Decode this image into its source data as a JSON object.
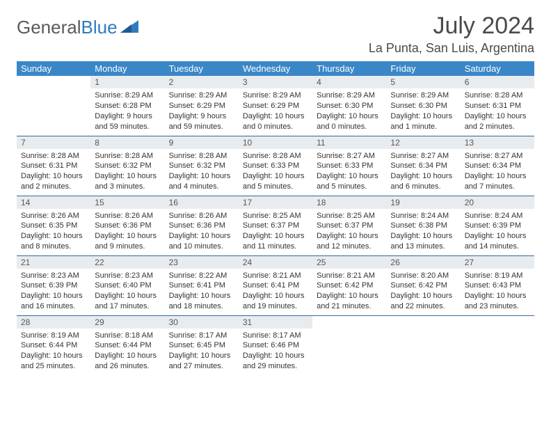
{
  "brand": {
    "part1": "General",
    "part2": "Blue"
  },
  "title": "July 2024",
  "location": "La Punta, San Luis, Argentina",
  "colors": {
    "header_bg": "#3a87c8",
    "header_text": "#ffffff",
    "daynum_bg": "#e9ecef",
    "row_divider": "#2f6aa0",
    "logo_blue": "#2f7bbf",
    "text": "#333333"
  },
  "daysOfWeek": [
    "Sunday",
    "Monday",
    "Tuesday",
    "Wednesday",
    "Thursday",
    "Friday",
    "Saturday"
  ],
  "weeks": [
    [
      null,
      {
        "n": "1",
        "sr": "Sunrise: 8:29 AM",
        "ss": "Sunset: 6:28 PM",
        "d1": "Daylight: 9 hours",
        "d2": "and 59 minutes."
      },
      {
        "n": "2",
        "sr": "Sunrise: 8:29 AM",
        "ss": "Sunset: 6:29 PM",
        "d1": "Daylight: 9 hours",
        "d2": "and 59 minutes."
      },
      {
        "n": "3",
        "sr": "Sunrise: 8:29 AM",
        "ss": "Sunset: 6:29 PM",
        "d1": "Daylight: 10 hours",
        "d2": "and 0 minutes."
      },
      {
        "n": "4",
        "sr": "Sunrise: 8:29 AM",
        "ss": "Sunset: 6:30 PM",
        "d1": "Daylight: 10 hours",
        "d2": "and 0 minutes."
      },
      {
        "n": "5",
        "sr": "Sunrise: 8:29 AM",
        "ss": "Sunset: 6:30 PM",
        "d1": "Daylight: 10 hours",
        "d2": "and 1 minute."
      },
      {
        "n": "6",
        "sr": "Sunrise: 8:28 AM",
        "ss": "Sunset: 6:31 PM",
        "d1": "Daylight: 10 hours",
        "d2": "and 2 minutes."
      }
    ],
    [
      {
        "n": "7",
        "sr": "Sunrise: 8:28 AM",
        "ss": "Sunset: 6:31 PM",
        "d1": "Daylight: 10 hours",
        "d2": "and 2 minutes."
      },
      {
        "n": "8",
        "sr": "Sunrise: 8:28 AM",
        "ss": "Sunset: 6:32 PM",
        "d1": "Daylight: 10 hours",
        "d2": "and 3 minutes."
      },
      {
        "n": "9",
        "sr": "Sunrise: 8:28 AM",
        "ss": "Sunset: 6:32 PM",
        "d1": "Daylight: 10 hours",
        "d2": "and 4 minutes."
      },
      {
        "n": "10",
        "sr": "Sunrise: 8:28 AM",
        "ss": "Sunset: 6:33 PM",
        "d1": "Daylight: 10 hours",
        "d2": "and 5 minutes."
      },
      {
        "n": "11",
        "sr": "Sunrise: 8:27 AM",
        "ss": "Sunset: 6:33 PM",
        "d1": "Daylight: 10 hours",
        "d2": "and 5 minutes."
      },
      {
        "n": "12",
        "sr": "Sunrise: 8:27 AM",
        "ss": "Sunset: 6:34 PM",
        "d1": "Daylight: 10 hours",
        "d2": "and 6 minutes."
      },
      {
        "n": "13",
        "sr": "Sunrise: 8:27 AM",
        "ss": "Sunset: 6:34 PM",
        "d1": "Daylight: 10 hours",
        "d2": "and 7 minutes."
      }
    ],
    [
      {
        "n": "14",
        "sr": "Sunrise: 8:26 AM",
        "ss": "Sunset: 6:35 PM",
        "d1": "Daylight: 10 hours",
        "d2": "and 8 minutes."
      },
      {
        "n": "15",
        "sr": "Sunrise: 8:26 AM",
        "ss": "Sunset: 6:36 PM",
        "d1": "Daylight: 10 hours",
        "d2": "and 9 minutes."
      },
      {
        "n": "16",
        "sr": "Sunrise: 8:26 AM",
        "ss": "Sunset: 6:36 PM",
        "d1": "Daylight: 10 hours",
        "d2": "and 10 minutes."
      },
      {
        "n": "17",
        "sr": "Sunrise: 8:25 AM",
        "ss": "Sunset: 6:37 PM",
        "d1": "Daylight: 10 hours",
        "d2": "and 11 minutes."
      },
      {
        "n": "18",
        "sr": "Sunrise: 8:25 AM",
        "ss": "Sunset: 6:37 PM",
        "d1": "Daylight: 10 hours",
        "d2": "and 12 minutes."
      },
      {
        "n": "19",
        "sr": "Sunrise: 8:24 AM",
        "ss": "Sunset: 6:38 PM",
        "d1": "Daylight: 10 hours",
        "d2": "and 13 minutes."
      },
      {
        "n": "20",
        "sr": "Sunrise: 8:24 AM",
        "ss": "Sunset: 6:39 PM",
        "d1": "Daylight: 10 hours",
        "d2": "and 14 minutes."
      }
    ],
    [
      {
        "n": "21",
        "sr": "Sunrise: 8:23 AM",
        "ss": "Sunset: 6:39 PM",
        "d1": "Daylight: 10 hours",
        "d2": "and 16 minutes."
      },
      {
        "n": "22",
        "sr": "Sunrise: 8:23 AM",
        "ss": "Sunset: 6:40 PM",
        "d1": "Daylight: 10 hours",
        "d2": "and 17 minutes."
      },
      {
        "n": "23",
        "sr": "Sunrise: 8:22 AM",
        "ss": "Sunset: 6:41 PM",
        "d1": "Daylight: 10 hours",
        "d2": "and 18 minutes."
      },
      {
        "n": "24",
        "sr": "Sunrise: 8:21 AM",
        "ss": "Sunset: 6:41 PM",
        "d1": "Daylight: 10 hours",
        "d2": "and 19 minutes."
      },
      {
        "n": "25",
        "sr": "Sunrise: 8:21 AM",
        "ss": "Sunset: 6:42 PM",
        "d1": "Daylight: 10 hours",
        "d2": "and 21 minutes."
      },
      {
        "n": "26",
        "sr": "Sunrise: 8:20 AM",
        "ss": "Sunset: 6:42 PM",
        "d1": "Daylight: 10 hours",
        "d2": "and 22 minutes."
      },
      {
        "n": "27",
        "sr": "Sunrise: 8:19 AM",
        "ss": "Sunset: 6:43 PM",
        "d1": "Daylight: 10 hours",
        "d2": "and 23 minutes."
      }
    ],
    [
      {
        "n": "28",
        "sr": "Sunrise: 8:19 AM",
        "ss": "Sunset: 6:44 PM",
        "d1": "Daylight: 10 hours",
        "d2": "and 25 minutes."
      },
      {
        "n": "29",
        "sr": "Sunrise: 8:18 AM",
        "ss": "Sunset: 6:44 PM",
        "d1": "Daylight: 10 hours",
        "d2": "and 26 minutes."
      },
      {
        "n": "30",
        "sr": "Sunrise: 8:17 AM",
        "ss": "Sunset: 6:45 PM",
        "d1": "Daylight: 10 hours",
        "d2": "and 27 minutes."
      },
      {
        "n": "31",
        "sr": "Sunrise: 8:17 AM",
        "ss": "Sunset: 6:46 PM",
        "d1": "Daylight: 10 hours",
        "d2": "and 29 minutes."
      },
      null,
      null,
      null
    ]
  ]
}
